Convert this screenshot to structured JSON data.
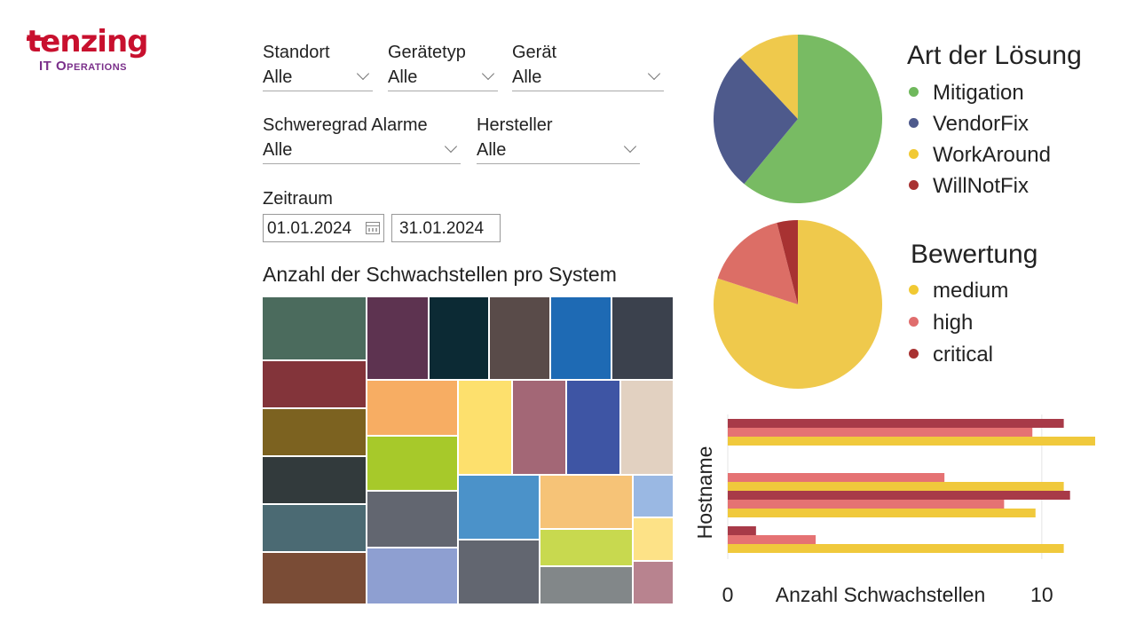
{
  "logo": {
    "main": "tenzing",
    "sub": "IT Operations"
  },
  "filters": {
    "standort": {
      "label": "Standort",
      "value": "Alle"
    },
    "geraetetyp": {
      "label": "Gerätetyp",
      "value": "Alle"
    },
    "geraet": {
      "label": "Gerät",
      "value": "Alle"
    },
    "schweregrad": {
      "label": "Schweregrad Alarme",
      "value": "Alle"
    },
    "hersteller": {
      "label": "Hersteller",
      "value": "Alle"
    },
    "zeitraum": {
      "label": "Zeitraum",
      "from": "01.01.2024",
      "to": "31.01.2024"
    }
  },
  "colors": {
    "accent_logo": "#c8102e",
    "accent_logo_sub": "#7a2f8a"
  },
  "chart_data": [
    {
      "type": "pie",
      "title": "Art der Lösung",
      "legend_placement": "right",
      "labels": [
        "Mitigation",
        "VendorFix",
        "WorkAround",
        "WillNotFix"
      ],
      "legend_colors": [
        "#6fb85c",
        "#4e5a8c",
        "#f1c933",
        "#a83232"
      ],
      "slices": [
        {
          "label": "Mitigation",
          "value": 61,
          "color": "#78bb63"
        },
        {
          "label": "VendorFix",
          "value": 27,
          "color": "#4e5a8c"
        },
        {
          "label": "WorkAround",
          "value": 12,
          "color": "#efc94c"
        }
      ]
    },
    {
      "type": "pie",
      "title": "Bewertung",
      "legend_placement": "right",
      "labels": [
        "medium",
        "high",
        "critical"
      ],
      "legend_colors": [
        "#f1c933",
        "#e06d6d",
        "#a83232"
      ],
      "slices": [
        {
          "label": "medium",
          "value": 80,
          "color": "#efc94c"
        },
        {
          "label": "high",
          "value": 16,
          "color": "#dc6e66"
        },
        {
          "label": "critical",
          "value": 4,
          "color": "#a83232"
        }
      ]
    },
    {
      "type": "treemap",
      "title": "Anzahl der Schwachstellen pro System",
      "cells": [
        {
          "x0": 0,
          "y0": 0,
          "x1": 116,
          "y1": 70,
          "color": "#4b6b5d"
        },
        {
          "x0": 0,
          "y0": 72,
          "x1": 116,
          "y1": 124,
          "color": "#83343a"
        },
        {
          "x0": 0,
          "y0": 126,
          "x1": 116,
          "y1": 178,
          "color": "#7c6220"
        },
        {
          "x0": 0,
          "y0": 180,
          "x1": 116,
          "y1": 232,
          "color": "#323a3c"
        },
        {
          "x0": 0,
          "y0": 234,
          "x1": 116,
          "y1": 286,
          "color": "#4b6a73"
        },
        {
          "x0": 0,
          "y0": 288,
          "x1": 116,
          "y1": 345,
          "color": "#7a4c36"
        },
        {
          "x0": 118,
          "y0": 0,
          "x1": 186,
          "y1": 92,
          "color": "#5d3350"
        },
        {
          "x0": 188,
          "y0": 0,
          "x1": 254,
          "y1": 92,
          "color": "#0c2a34"
        },
        {
          "x0": 256,
          "y0": 0,
          "x1": 323,
          "y1": 92,
          "color": "#594b49"
        },
        {
          "x0": 325,
          "y0": 0,
          "x1": 392,
          "y1": 92,
          "color": "#1e6ab4"
        },
        {
          "x0": 394,
          "y0": 0,
          "x1": 462,
          "y1": 92,
          "color": "#3b414d"
        },
        {
          "x0": 118,
          "y0": 94,
          "x1": 219,
          "y1": 155,
          "color": "#f7ad63"
        },
        {
          "x0": 118,
          "y0": 157,
          "x1": 219,
          "y1": 217,
          "color": "#a7c92a"
        },
        {
          "x0": 118,
          "y0": 219,
          "x1": 219,
          "y1": 281,
          "color": "#626670"
        },
        {
          "x0": 118,
          "y0": 283,
          "x1": 219,
          "y1": 345,
          "color": "#8e9fd1"
        },
        {
          "x0": 221,
          "y0": 94,
          "x1": 280,
          "y1": 199,
          "color": "#fde06d"
        },
        {
          "x0": 282,
          "y0": 94,
          "x1": 341,
          "y1": 199,
          "color": "#a36776"
        },
        {
          "x0": 343,
          "y0": 94,
          "x1": 402,
          "y1": 199,
          "color": "#3e55a4"
        },
        {
          "x0": 404,
          "y0": 94,
          "x1": 462,
          "y1": 199,
          "color": "#e2d1c1"
        },
        {
          "x0": 221,
          "y0": 201,
          "x1": 311,
          "y1": 272,
          "color": "#4b92c9"
        },
        {
          "x0": 221,
          "y0": 274,
          "x1": 311,
          "y1": 345,
          "color": "#626670"
        },
        {
          "x0": 313,
          "y0": 201,
          "x1": 416,
          "y1": 260,
          "color": "#f6c377"
        },
        {
          "x0": 313,
          "y0": 262,
          "x1": 416,
          "y1": 302,
          "color": "#c8d94f"
        },
        {
          "x0": 313,
          "y0": 304,
          "x1": 416,
          "y1": 345,
          "color": "#828789"
        },
        {
          "x0": 418,
          "y0": 201,
          "x1": 462,
          "y1": 247,
          "color": "#9ab8e3"
        },
        {
          "x0": 418,
          "y0": 249,
          "x1": 462,
          "y1": 296,
          "color": "#fde287"
        },
        {
          "x0": 418,
          "y0": 298,
          "x1": 462,
          "y1": 345,
          "color": "#b8838f"
        }
      ]
    },
    {
      "type": "bar",
      "orientation": "horizontal",
      "xlabel": "Anzahl Schwachstellen",
      "ylabel": "Hostname",
      "xlim": [
        0,
        14
      ],
      "xticks": [
        0,
        10
      ],
      "grid": true,
      "series": [
        {
          "color": "#a83a48",
          "values": [
            10.7,
            null,
            10.9,
            0.9
          ]
        },
        {
          "color": "#e57273",
          "values": [
            9.7,
            6.9,
            8.8,
            2.8
          ]
        },
        {
          "color": "#f0c93c",
          "values": [
            11.7,
            10.7,
            9.8,
            10.7
          ]
        }
      ]
    }
  ]
}
